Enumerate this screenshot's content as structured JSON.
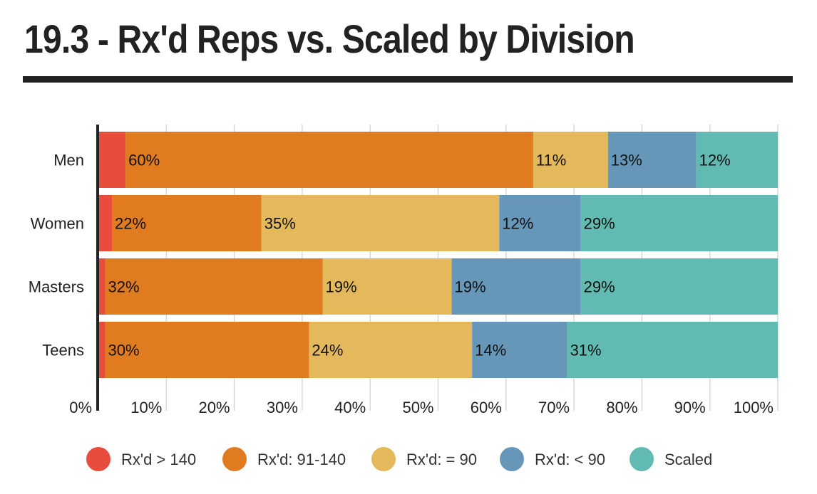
{
  "title": "19.3 - Rx'd Reps vs. Scaled by Division",
  "chart_data": {
    "type": "bar",
    "orientation": "horizontal",
    "stacked": true,
    "title": "19.3 - Rx'd Reps vs. Scaled by Division",
    "categories": [
      "Men",
      "Women",
      "Masters",
      "Teens"
    ],
    "xlim": [
      0,
      100
    ],
    "x_ticks": [
      "0%",
      "10%",
      "20%",
      "30%",
      "40%",
      "50%",
      "60%",
      "70%",
      "80%",
      "90%",
      "100%"
    ],
    "grid": true,
    "legend_position": "bottom",
    "series": [
      {
        "name": "Rx'd > 140",
        "color": "#e74c3c",
        "values": [
          4,
          2,
          1,
          1
        ],
        "labels": [
          "",
          "",
          "",
          ""
        ]
      },
      {
        "name": "Rx'd: 91-140",
        "color": "#e07b20",
        "values": [
          60,
          22,
          32,
          30
        ],
        "labels": [
          "60%",
          "22%",
          "32%",
          "30%"
        ]
      },
      {
        "name": "Rx'd: = 90",
        "color": "#e3b95c",
        "values": [
          11,
          35,
          19,
          24
        ],
        "labels": [
          "11%",
          "35%",
          "19%",
          "24%"
        ]
      },
      {
        "name": "Rx'd: < 90",
        "color": "#6696b8",
        "values": [
          13,
          12,
          19,
          14
        ],
        "labels": [
          "13%",
          "12%",
          "19%",
          "14%"
        ]
      },
      {
        "name": "Scaled",
        "color": "#62bbb2",
        "values": [
          12,
          29,
          29,
          31
        ],
        "labels": [
          "12%",
          "29%",
          "29%",
          "31%"
        ]
      }
    ]
  }
}
